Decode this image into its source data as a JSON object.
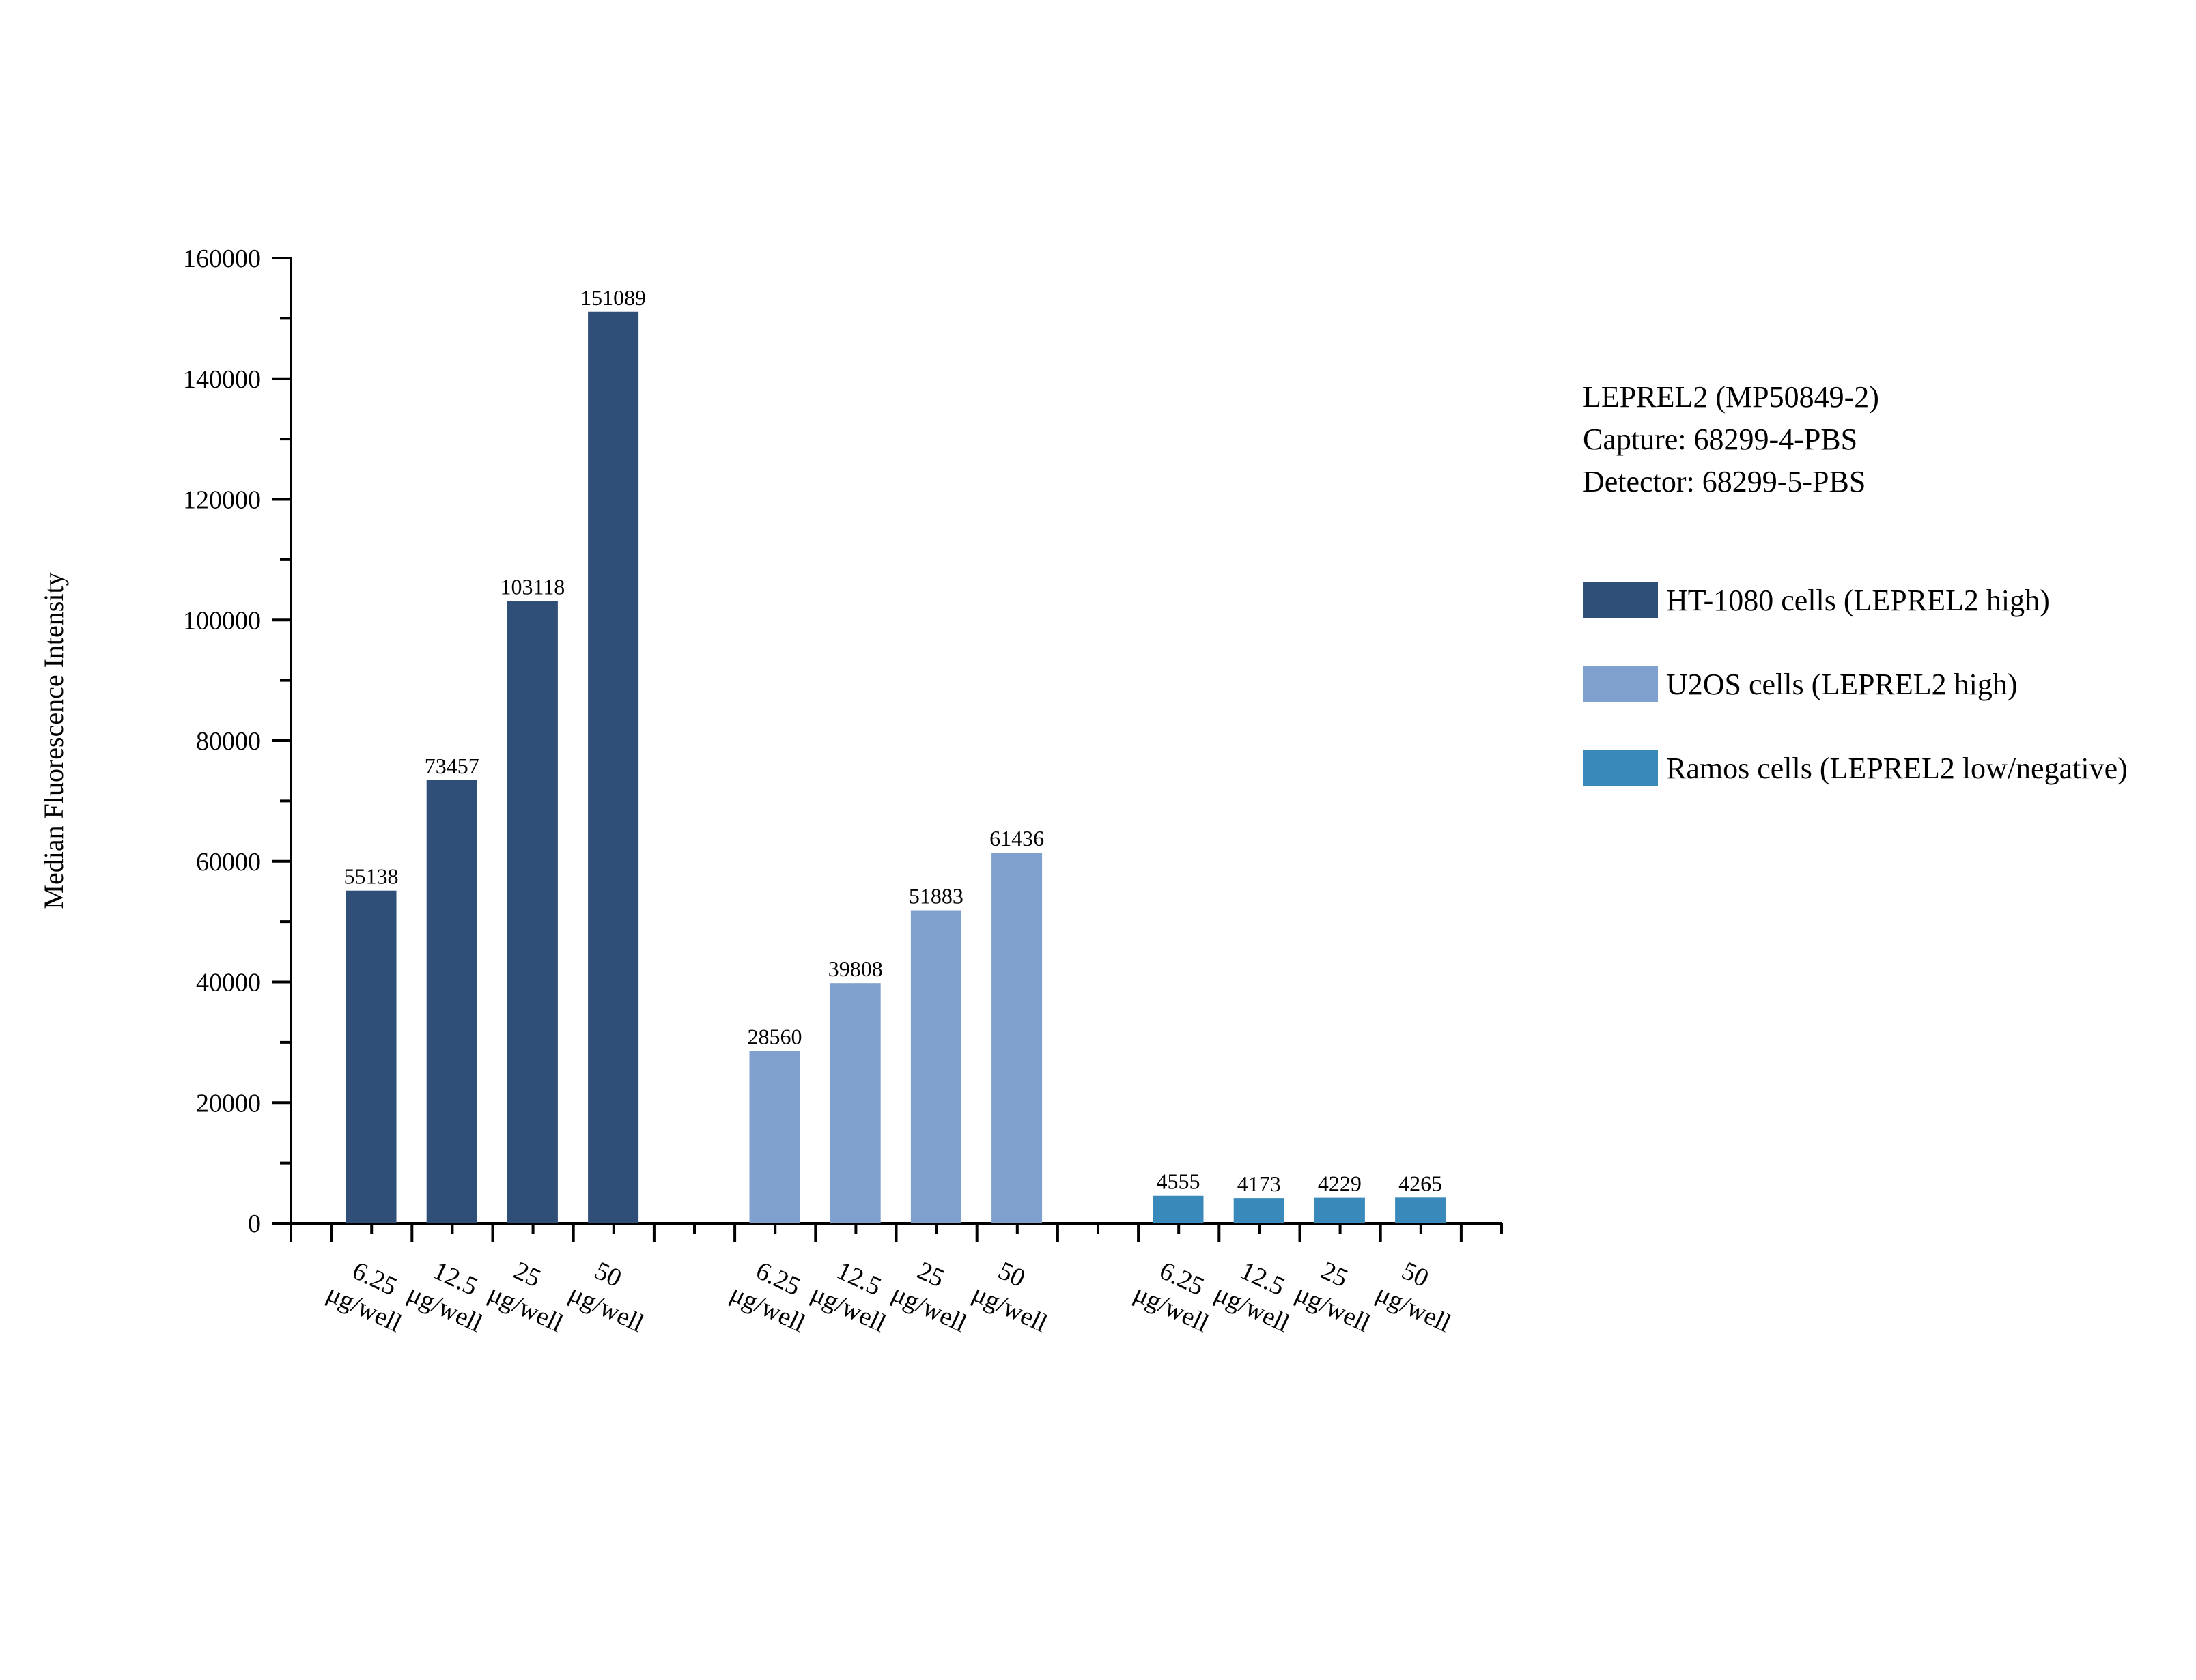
{
  "chart_data": {
    "type": "bar",
    "title": "",
    "xlabel": "",
    "ylabel": "Median Fluorescence Intensity",
    "ylim": [
      0,
      160000
    ],
    "yticks": [
      0,
      20000,
      40000,
      60000,
      80000,
      100000,
      120000,
      140000,
      160000
    ],
    "categories": [
      "6.25 μg/well",
      "12.5 μg/well",
      "25 μg/well",
      "50 μg/well"
    ],
    "grid": false,
    "legend_position": "right",
    "annotation_lines": [
      "LEPREL2 (MP50849-2)",
      "Capture: 68299-4-PBS",
      "Detector: 68299-5-PBS"
    ],
    "series": [
      {
        "name": "HT-1080 cells (LEPREL2 high)",
        "color": "#2f4e78",
        "values": [
          55138,
          73457,
          103118,
          151089
        ]
      },
      {
        "name": "U2OS cells (LEPREL2 high)",
        "color": "#7f9fcd",
        "values": [
          28560,
          39808,
          51883,
          61436
        ]
      },
      {
        "name": "Ramos cells (LEPREL2 low/negative)",
        "color": "#3a89bb",
        "values": [
          4555,
          4173,
          4229,
          4265
        ]
      }
    ]
  }
}
